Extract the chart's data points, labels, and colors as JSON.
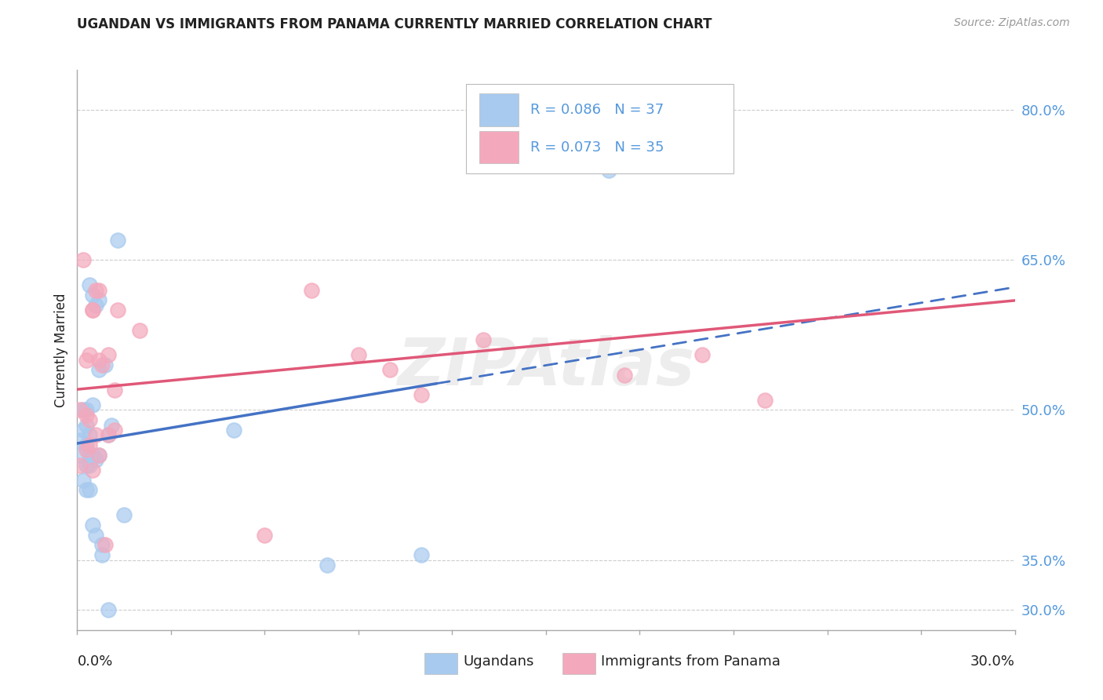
{
  "title": "UGANDAN VS IMMIGRANTS FROM PANAMA CURRENTLY MARRIED CORRELATION CHART",
  "source": "Source: ZipAtlas.com",
  "ylabel": "Currently Married",
  "xmin": 0.0,
  "xmax": 0.3,
  "ymin": 0.28,
  "ymax": 0.84,
  "yticks": [
    0.3,
    0.35,
    0.5,
    0.65,
    0.8
  ],
  "ytick_labels": [
    "30.0%",
    "35.0%",
    "50.0%",
    "65.0%",
    "80.0%"
  ],
  "legend_label1": "Ugandans",
  "legend_label2": "Immigrants from Panama",
  "blue_fill": "#A8CAEE",
  "pink_fill": "#F4A8BC",
  "blue_line": "#4472C4",
  "pink_line": "#E05878",
  "text_color": "#222222",
  "tick_color": "#5599DD",
  "source_color": "#999999",
  "background_color": "#FFFFFF",
  "grid_color": "#CCCCCC",
  "watermark": "ZIPAtlas",
  "blue_scatter_x": [
    0.001,
    0.001,
    0.002,
    0.002,
    0.002,
    0.003,
    0.003,
    0.003,
    0.003,
    0.003,
    0.004,
    0.004,
    0.004,
    0.004,
    0.004,
    0.005,
    0.005,
    0.005,
    0.005,
    0.006,
    0.006,
    0.006,
    0.007,
    0.007,
    0.007,
    0.008,
    0.008,
    0.009,
    0.01,
    0.01,
    0.011,
    0.013,
    0.015,
    0.05,
    0.08,
    0.11,
    0.17
  ],
  "blue_scatter_y": [
    0.455,
    0.47,
    0.43,
    0.48,
    0.5,
    0.42,
    0.445,
    0.465,
    0.485,
    0.5,
    0.42,
    0.445,
    0.475,
    0.455,
    0.625,
    0.385,
    0.505,
    0.615,
    0.455,
    0.375,
    0.45,
    0.605,
    0.54,
    0.61,
    0.455,
    0.355,
    0.365,
    0.545,
    0.475,
    0.3,
    0.485,
    0.67,
    0.395,
    0.48,
    0.345,
    0.355,
    0.74
  ],
  "pink_scatter_x": [
    0.001,
    0.001,
    0.002,
    0.003,
    0.003,
    0.003,
    0.004,
    0.004,
    0.004,
    0.005,
    0.005,
    0.005,
    0.006,
    0.006,
    0.007,
    0.007,
    0.007,
    0.008,
    0.009,
    0.01,
    0.01,
    0.012,
    0.012,
    0.013,
    0.02,
    0.06,
    0.075,
    0.09,
    0.1,
    0.11,
    0.13,
    0.15,
    0.175,
    0.2,
    0.22
  ],
  "pink_scatter_y": [
    0.445,
    0.5,
    0.65,
    0.46,
    0.495,
    0.55,
    0.465,
    0.49,
    0.555,
    0.44,
    0.6,
    0.6,
    0.475,
    0.62,
    0.62,
    0.455,
    0.55,
    0.545,
    0.365,
    0.475,
    0.555,
    0.48,
    0.52,
    0.6,
    0.58,
    0.375,
    0.62,
    0.555,
    0.54,
    0.515,
    0.57,
    0.795,
    0.535,
    0.555,
    0.51
  ]
}
